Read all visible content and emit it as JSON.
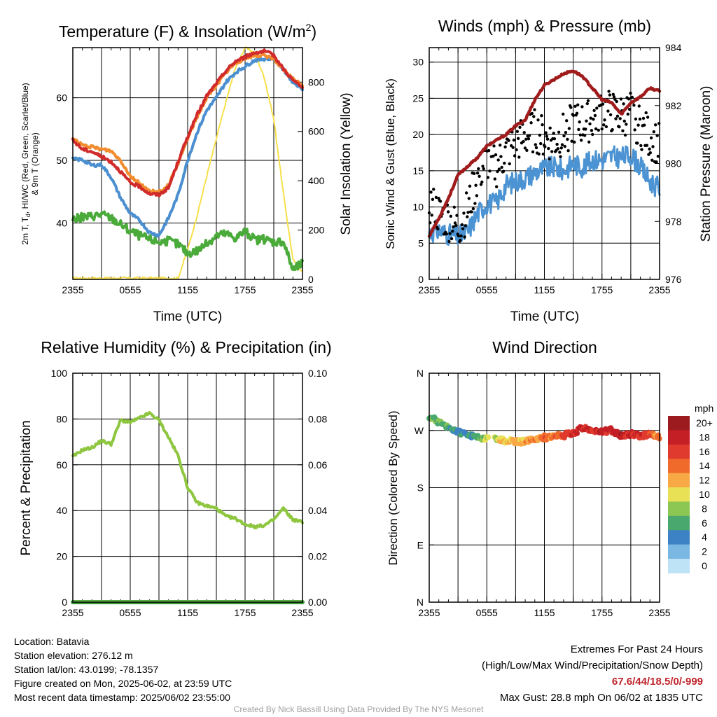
{
  "chart_data": [
    {
      "type": "line",
      "title_main": "Temperature (F) & Insolation (W/m",
      "title_sup": "2",
      "title_end": ")",
      "ylabel_left_line1": "2m T, T",
      "ylabel_left_sub": "d",
      "ylabel_left_line1_end": ", HI/WC (Red, Green, Scarlet/Blue)",
      "ylabel_left_line2": "& 9m T (Orange)",
      "ylabel_right": "Solar Insolation (Yellow)",
      "xlabel": "Time (UTC)",
      "x_ticks": [
        "2355",
        "0555",
        "1155",
        "1755",
        "2355"
      ],
      "ylim_left": [
        31,
        68
      ],
      "y_ticks_left": [
        "40",
        "50",
        "60"
      ],
      "ylim_right": [
        0,
        940
      ],
      "y_ticks_right": [
        "0",
        "200",
        "400",
        "600",
        "800"
      ],
      "x_hours": [
        0,
        1,
        2,
        3,
        4,
        5,
        6,
        7,
        8,
        9,
        10,
        11,
        12,
        13,
        14,
        15,
        16,
        17,
        18,
        19,
        20,
        21,
        22,
        23,
        24
      ],
      "series": [
        {
          "color": "#f7e04b",
          "axis": "right",
          "values": [
            5,
            5,
            5,
            5,
            5,
            5,
            5,
            5,
            5,
            5,
            5,
            5,
            120,
            260,
            420,
            570,
            720,
            860,
            940,
            920,
            820,
            650,
            350,
            80,
            30
          ]
        },
        {
          "color": "#4aaa3a",
          "axis": "left",
          "values": [
            40.6,
            40.9,
            41.1,
            41.4,
            40.8,
            39.8,
            38.7,
            38.0,
            37.4,
            37.0,
            37.1,
            36.6,
            35.2,
            35.6,
            36.7,
            38.0,
            38.3,
            37.6,
            38.7,
            37.3,
            37.4,
            37.0,
            37.1,
            32.5,
            33.6
          ]
        },
        {
          "color": "#4b8fd0",
          "axis": "left",
          "values": [
            50.2,
            50.1,
            49.2,
            49.3,
            47.3,
            44.0,
            41.5,
            40.4,
            38.5,
            38.0,
            40.8,
            44.5,
            50.0,
            54.5,
            58.0,
            60.0,
            62.5,
            64.0,
            65.0,
            66.0,
            66.2,
            66.3,
            64.5,
            62.5,
            61.5
          ]
        },
        {
          "color": "#f28c2e",
          "axis": "left",
          "values": [
            53.5,
            52.4,
            52.1,
            51.8,
            51.5,
            50.0,
            47.5,
            46.3,
            45.1,
            44.9,
            46.0,
            49.5,
            53.5,
            57.0,
            60.0,
            62.0,
            64.0,
            65.5,
            66.3,
            66.7,
            66.7,
            66.3,
            64.5,
            63.0,
            62.0
          ]
        },
        {
          "color": "#d12b2b",
          "axis": "left",
          "values": [
            53.2,
            51.8,
            51.4,
            50.6,
            49.8,
            48.2,
            46.4,
            45.8,
            44.7,
            44.5,
            45.6,
            49.8,
            53.8,
            57.3,
            60.3,
            62.3,
            64.3,
            65.8,
            66.5,
            67.2,
            67.4,
            66.8,
            64.6,
            62.8,
            61.6
          ]
        }
      ]
    },
    {
      "type": "line",
      "title": "Winds (mph) & Pressure (mb)",
      "ylabel_left": "Sonic Wind & Gust (Blue, Black)",
      "ylabel_right": "Station Pressure (Maroon)",
      "xlabel": "Time (UTC)",
      "x_ticks": [
        "2355",
        "0555",
        "1155",
        "1755",
        "2355"
      ],
      "ylim_left": [
        0,
        32
      ],
      "y_ticks_left": [
        "0",
        "5",
        "10",
        "15",
        "20",
        "25",
        "30"
      ],
      "ylim_right": [
        976,
        984
      ],
      "y_ticks_right": [
        "976",
        "978",
        "980",
        "982",
        "984"
      ],
      "x_hours": [
        0,
        1,
        2,
        3,
        4,
        5,
        6,
        7,
        8,
        9,
        10,
        11,
        12,
        13,
        14,
        15,
        16,
        17,
        18,
        19,
        20,
        21,
        22,
        23,
        24
      ],
      "series": [
        {
          "name": "wind",
          "color": "#4b93d2",
          "values": [
            6.5,
            6.8,
            6.2,
            5.9,
            6.5,
            9.0,
            10.5,
            10.5,
            13.0,
            13.5,
            14.0,
            14.8,
            15.3,
            15.5,
            15.0,
            16.0,
            15.5,
            16.5,
            16.5,
            17.0,
            16.8,
            17.2,
            15.5,
            13.5,
            12.5
          ]
        },
        {
          "name": "gust",
          "color": "#000000",
          "values": [
            10.5,
            9.0,
            8.2,
            7.0,
            9.5,
            14.0,
            16.5,
            15.5,
            17.5,
            19.0,
            19.5,
            20.5,
            19.5,
            19.0,
            20.0,
            21.5,
            21.5,
            22.0,
            23.5,
            23.0,
            22.5,
            23.0,
            21.0,
            19.5,
            18.5
          ]
        },
        {
          "name": "pressure",
          "color": "#a01c1c",
          "axis": "right",
          "values": [
            977.5,
            978.1,
            978.8,
            979.6,
            979.9,
            980.2,
            980.6,
            980.8,
            981.0,
            981.3,
            981.5,
            982.2,
            982.7,
            982.9,
            983.1,
            983.2,
            983.0,
            982.6,
            982.2,
            982.1,
            981.7,
            982.1,
            982.3,
            982.6,
            982.5
          ]
        }
      ]
    },
    {
      "type": "line",
      "title": "Relative Humidity (%) & Precipitation (in)",
      "ylabel": "Percent & Precipitation",
      "x_ticks": [
        "2355",
        "0555",
        "1155",
        "1755",
        "2355"
      ],
      "ylim_left": [
        0,
        100
      ],
      "y_ticks_left": [
        "0",
        "20",
        "40",
        "60",
        "80",
        "100"
      ],
      "ylim_right": [
        0,
        0.1
      ],
      "y_ticks_right": [
        "0.00",
        "0.02",
        "0.04",
        "0.06",
        "0.08",
        "0.10"
      ],
      "x_hours": [
        0,
        1,
        2,
        3,
        4,
        5,
        6,
        7,
        8,
        9,
        10,
        11,
        12,
        13,
        14,
        15,
        16,
        17,
        18,
        19,
        20,
        21,
        22,
        23,
        24
      ],
      "series": [
        {
          "name": "rh",
          "color": "#8ec63f",
          "values": [
            63.5,
            66.5,
            67.5,
            70.5,
            69.0,
            79.5,
            78.5,
            80.5,
            82.5,
            79.5,
            72.0,
            64.0,
            50.0,
            43.5,
            42.0,
            41.0,
            37.5,
            36.5,
            34.0,
            33.0,
            33.5,
            36.0,
            41.0,
            36.0,
            35.0
          ]
        },
        {
          "name": "precip",
          "color": "#3a9a3a",
          "values": [
            0,
            0,
            0,
            0,
            0,
            0,
            0,
            0,
            0,
            0,
            0,
            0,
            0,
            0,
            0,
            0,
            0,
            0,
            0,
            0,
            0,
            0,
            0,
            0,
            0
          ]
        }
      ]
    },
    {
      "type": "scatter",
      "title": "Wind Direction",
      "ylabel": "Direction (Colored By Speed)",
      "x_ticks": [
        "2355",
        "0555",
        "1155",
        "1755",
        "2355"
      ],
      "y_ticks": [
        "N",
        "E",
        "S",
        "W",
        "N"
      ],
      "ylim": [
        0,
        360
      ],
      "x_hours": [
        0,
        1,
        2,
        3,
        4,
        5,
        6,
        7,
        8,
        9,
        10,
        11,
        12,
        13,
        14,
        15,
        16,
        17,
        18,
        19,
        20,
        21,
        22,
        23,
        24
      ],
      "direction_deg": [
        292,
        283,
        276,
        268,
        264,
        258,
        258,
        256,
        254,
        252,
        252,
        258,
        259,
        260,
        262,
        266,
        274,
        270,
        268,
        270,
        262,
        264,
        262,
        264,
        261
      ],
      "speed_mph": [
        6,
        6,
        6,
        5,
        4,
        5,
        9,
        10,
        11,
        12,
        12,
        13,
        14,
        14,
        16,
        17,
        18,
        17,
        18,
        17,
        18,
        17,
        16,
        15,
        13
      ],
      "legend_title": "mph",
      "legend_labels": [
        "20+",
        "18",
        "16",
        "14",
        "12",
        "10",
        "8",
        "6",
        "4",
        "2",
        "0"
      ],
      "legend_colors": [
        "#9b1b1e",
        "#c41f25",
        "#e03a2e",
        "#f06a2c",
        "#f8a844",
        "#e9e155",
        "#8cc653",
        "#49a86e",
        "#3d82c4",
        "#7ab8e3",
        "#bfe3f6"
      ]
    }
  ],
  "footer_left": [
    "Location: Batavia",
    "Station elevation: 276.12 m",
    "Station lat/lon: 43.0199; -78.1357",
    "Figure created on Mon, 2025-06-02, at 23:59 UTC",
    "Most recent data timestamp: 2025/06/02 23:55:00"
  ],
  "footer_right": {
    "line1": "Extremes For Past 24 Hours",
    "line2": "(High/Low/Max Wind/Precipitation/Snow Depth)",
    "extremes": "67.6/44/18.5/0/-999",
    "max_gust": "Max Gust: 28.8 mph On 06/02 at 1835 UTC"
  },
  "credit": "Created By Nick Bassill Using Data Provided By The NYS Mesonet"
}
